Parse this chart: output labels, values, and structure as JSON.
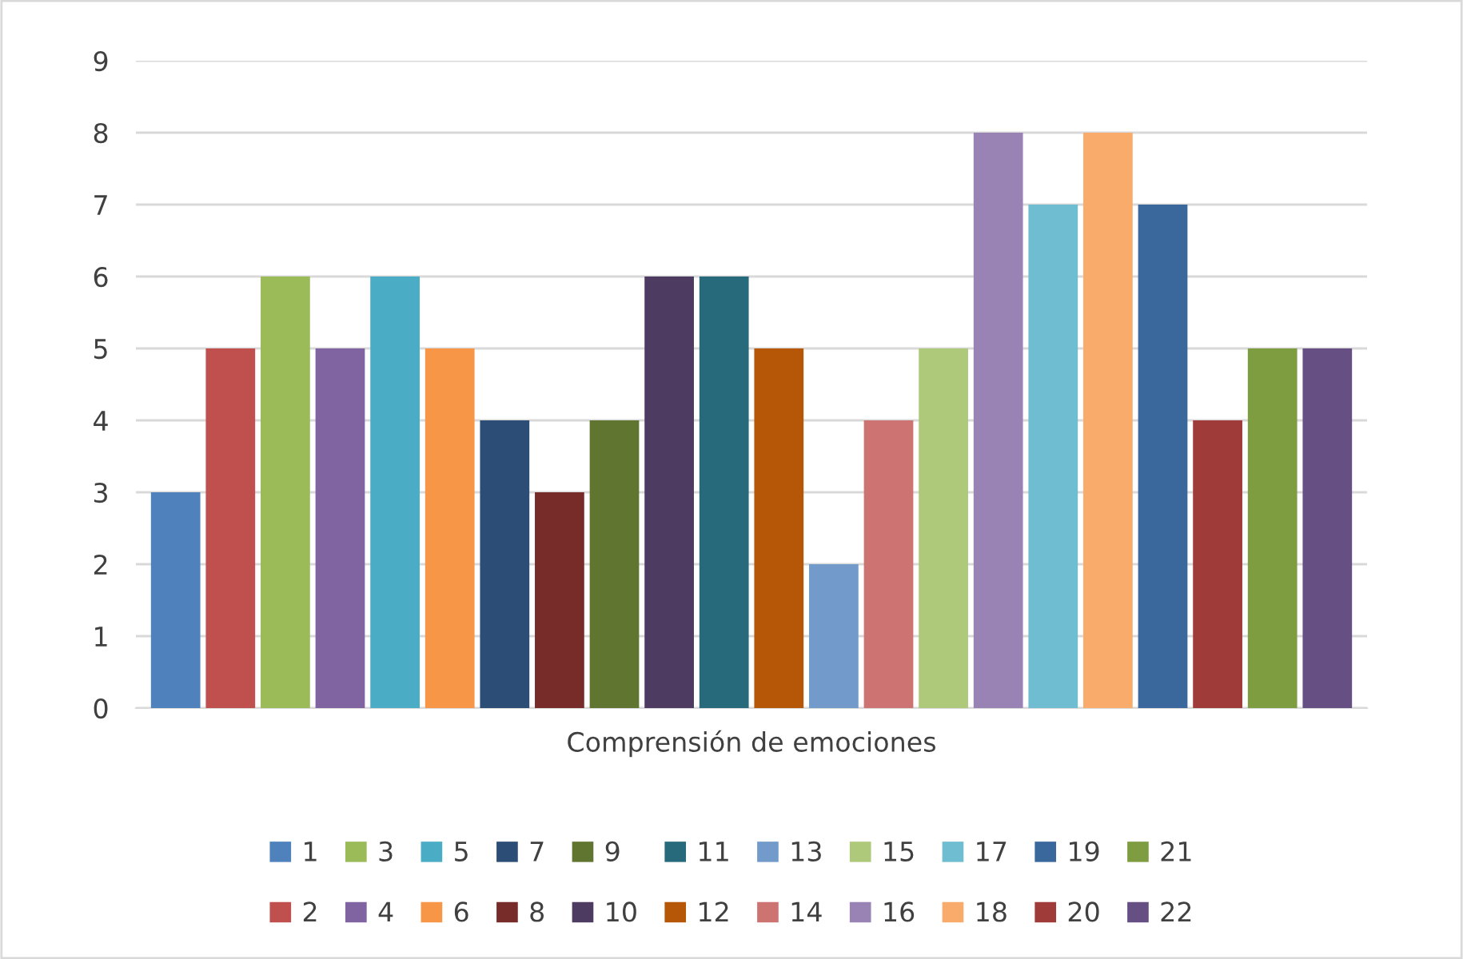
{
  "chart_data": {
    "type": "bar",
    "categories": [
      "Comprensión de emociones"
    ],
    "ylim": [
      0,
      9
    ],
    "yticks": [
      0,
      1,
      2,
      3,
      4,
      5,
      6,
      7,
      8,
      9
    ],
    "grid": "y",
    "legend": "bottom",
    "series": [
      {
        "name": "1",
        "color": "#4f81bd",
        "values": [
          3
        ]
      },
      {
        "name": "2",
        "color": "#c0504d",
        "values": [
          5
        ]
      },
      {
        "name": "3",
        "color": "#9bbb59",
        "values": [
          6
        ]
      },
      {
        "name": "4",
        "color": "#8064a2",
        "values": [
          5
        ]
      },
      {
        "name": "5",
        "color": "#4bacc6",
        "values": [
          6
        ]
      },
      {
        "name": "6",
        "color": "#f79646",
        "values": [
          5
        ]
      },
      {
        "name": "7",
        "color": "#2c4d75",
        "values": [
          4
        ]
      },
      {
        "name": "8",
        "color": "#772c2a",
        "values": [
          3
        ]
      },
      {
        "name": "9",
        "color": "#5f7530",
        "values": [
          4
        ]
      },
      {
        "name": "10",
        "color": "#4d3b62",
        "values": [
          6
        ]
      },
      {
        "name": "11",
        "color": "#276a7c",
        "values": [
          6
        ]
      },
      {
        "name": "12",
        "color": "#b65708",
        "values": [
          5
        ]
      },
      {
        "name": "13",
        "color": "#729aca",
        "values": [
          2
        ]
      },
      {
        "name": "14",
        "color": "#cd7371",
        "values": [
          4
        ]
      },
      {
        "name": "15",
        "color": "#afc97a",
        "values": [
          5
        ]
      },
      {
        "name": "16",
        "color": "#9983b5",
        "values": [
          8
        ]
      },
      {
        "name": "17",
        "color": "#6fbdd1",
        "values": [
          7
        ]
      },
      {
        "name": "18",
        "color": "#f9ab6b",
        "values": [
          8
        ]
      },
      {
        "name": "19",
        "color": "#3a679c",
        "values": [
          7
        ]
      },
      {
        "name": "20",
        "color": "#9f3b38",
        "values": [
          4
        ]
      },
      {
        "name": "21",
        "color": "#7e9c40",
        "values": [
          5
        ]
      },
      {
        "name": "22",
        "color": "#664f83",
        "values": [
          5
        ]
      }
    ]
  }
}
